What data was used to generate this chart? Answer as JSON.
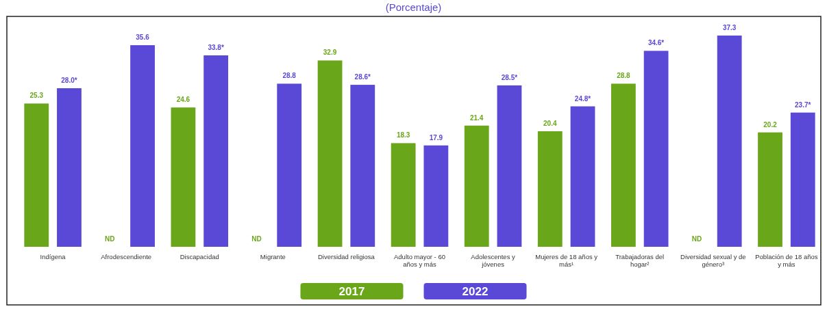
{
  "chart_data": {
    "type": "bar",
    "title": "(Porcentaje)",
    "legend": "bottom",
    "categories": [
      "Indígena",
      "Afrodescendiente",
      "Discapacidad",
      "Migrante",
      "Diversidad religiosa",
      "Adulto mayor - 60 años y más",
      "Adolescentes y jóvenes",
      "Mujeres de 18 años y más¹",
      "Trabajadoras del hogar²",
      "Diversidad sexual y de género³",
      "Población de 18 años y más"
    ],
    "series": [
      {
        "name": "2017",
        "color": "#6aa619",
        "values": [
          25.3,
          null,
          24.6,
          null,
          32.9,
          18.3,
          21.4,
          20.4,
          28.8,
          null,
          20.2
        ],
        "value_labels": [
          "25.3",
          "ND",
          "24.6",
          "ND",
          "32.9",
          "18.3",
          "21.4",
          "20.4",
          "28.8",
          "ND",
          "20.2"
        ]
      },
      {
        "name": "2022",
        "color": "#5a48d6",
        "values": [
          28.0,
          35.6,
          33.8,
          28.8,
          28.6,
          17.9,
          28.5,
          24.8,
          34.6,
          37.3,
          23.7
        ],
        "value_labels": [
          "28.0*",
          "35.6",
          "33.8*",
          "28.8",
          "28.6*",
          "17.9",
          "28.5*",
          "24.8*",
          "34.6*",
          "37.3",
          "23.7*"
        ]
      }
    ]
  }
}
